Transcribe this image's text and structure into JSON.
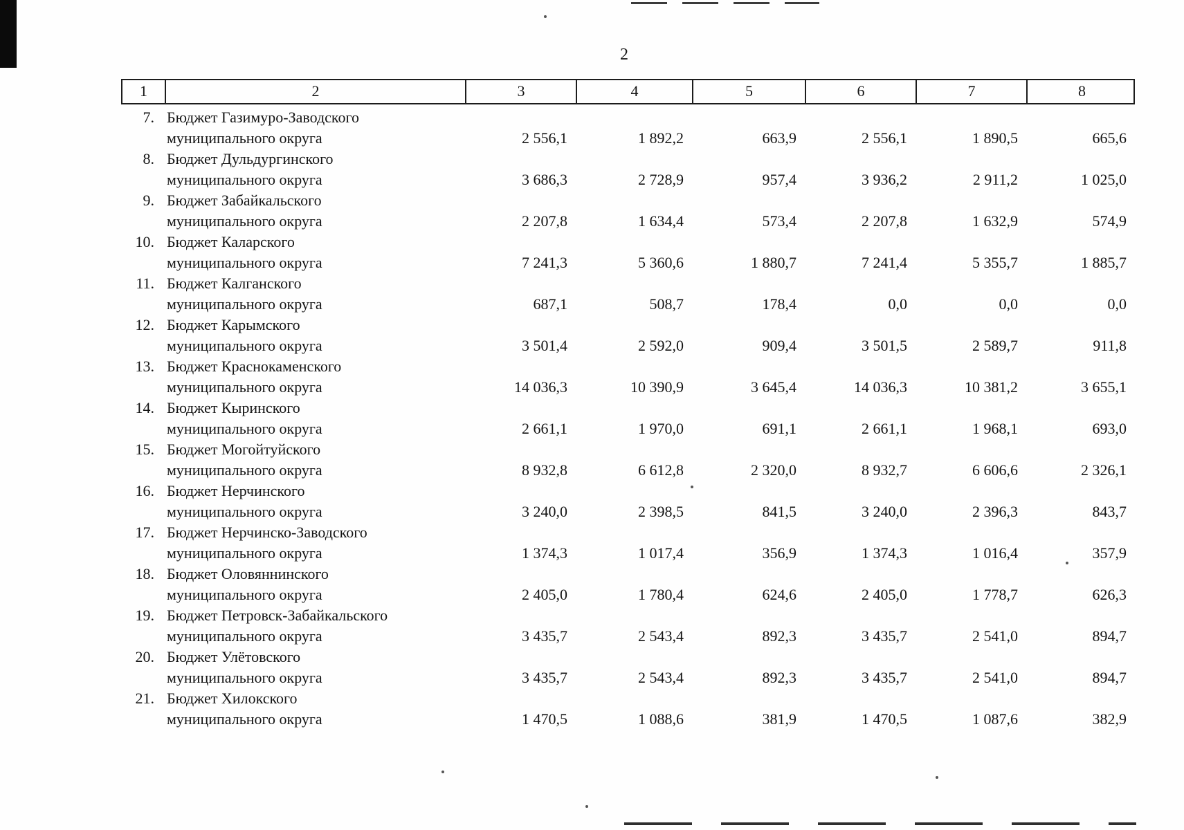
{
  "page": {
    "number": "2"
  },
  "table": {
    "header": [
      "1",
      "2",
      "3",
      "4",
      "5",
      "6",
      "7",
      "8"
    ],
    "name_line2": "муниципального округа",
    "rows": [
      {
        "num": "7.",
        "name": "Бюджет Газимуро-Заводского",
        "name2": "муниципального округа",
        "values": [
          "2 556,1",
          "1 892,2",
          "663,9",
          "2 556,1",
          "1 890,5",
          "665,6"
        ]
      },
      {
        "num": "8.",
        "name": "Бюджет Дульдургинского",
        "name2": "муниципального округа",
        "values": [
          "3 686,3",
          "2 728,9",
          "957,4",
          "3 936,2",
          "2 911,2",
          "1 025,0"
        ]
      },
      {
        "num": "9.",
        "name": "Бюджет Забайкальского",
        "name2": "муниципального округа",
        "values": [
          "2 207,8",
          "1 634,4",
          "573,4",
          "2 207,8",
          "1 632,9",
          "574,9"
        ]
      },
      {
        "num": "10.",
        "name": "Бюджет Каларского",
        "name2": "муниципального округа",
        "values": [
          "7 241,3",
          "5 360,6",
          "1 880,7",
          "7 241,4",
          "5 355,7",
          "1 885,7"
        ]
      },
      {
        "num": "11.",
        "name": "Бюджет Калганского",
        "name2": "муниципального округа",
        "values": [
          "687,1",
          "508,7",
          "178,4",
          "0,0",
          "0,0",
          "0,0"
        ]
      },
      {
        "num": "12.",
        "name": "Бюджет Карымского",
        "name2": "муниципального округа",
        "values": [
          "3 501,4",
          "2 592,0",
          "909,4",
          "3 501,5",
          "2 589,7",
          "911,8"
        ]
      },
      {
        "num": "13.",
        "name": "Бюджет Краснокаменского",
        "name2": "муниципального округа",
        "values": [
          "14 036,3",
          "10 390,9",
          "3 645,4",
          "14 036,3",
          "10 381,2",
          "3 655,1"
        ]
      },
      {
        "num": "14.",
        "name": "Бюджет Кыринского",
        "name2": "муниципального округа",
        "values": [
          "2 661,1",
          "1 970,0",
          "691,1",
          "2 661,1",
          "1 968,1",
          "693,0"
        ]
      },
      {
        "num": "15.",
        "name": "Бюджет Могойтуйского",
        "name2": "муниципального округа",
        "values": [
          "8 932,8",
          "6 612,8",
          "2 320,0",
          "8 932,7",
          "6 606,6",
          "2 326,1"
        ]
      },
      {
        "num": "16.",
        "name": "Бюджет Нерчинского",
        "name2": "муниципального округа",
        "values": [
          "3 240,0",
          "2 398,5",
          "841,5",
          "3 240,0",
          "2 396,3",
          "843,7"
        ]
      },
      {
        "num": "17.",
        "name": "Бюджет Нерчинско-Заводского",
        "name2": "муниципального округа",
        "values": [
          "1 374,3",
          "1 017,4",
          "356,9",
          "1 374,3",
          "1 016,4",
          "357,9"
        ]
      },
      {
        "num": "18.",
        "name": "Бюджет Оловяннинского",
        "name2": "муниципального округа",
        "values": [
          "2 405,0",
          "1 780,4",
          "624,6",
          "2 405,0",
          "1 778,7",
          "626,3"
        ]
      },
      {
        "num": "19.",
        "name": "Бюджет Петровск-Забайкальского",
        "name2": "муниципального округа",
        "values": [
          "3 435,7",
          "2 543,4",
          "892,3",
          "3 435,7",
          "2 541,0",
          "894,7"
        ]
      },
      {
        "num": "20.",
        "name": "Бюджет Улётовского",
        "name2": "муниципального округа",
        "values": [
          "3 435,7",
          "2 543,4",
          "892,3",
          "3 435,7",
          "2 541,0",
          "894,7"
        ]
      },
      {
        "num": "21.",
        "name": "Бюджет Хилокского",
        "name2": "муниципального округа",
        "values": [
          "1 470,5",
          "1 088,6",
          "381,9",
          "1 470,5",
          "1 087,6",
          "382,9"
        ]
      }
    ]
  }
}
